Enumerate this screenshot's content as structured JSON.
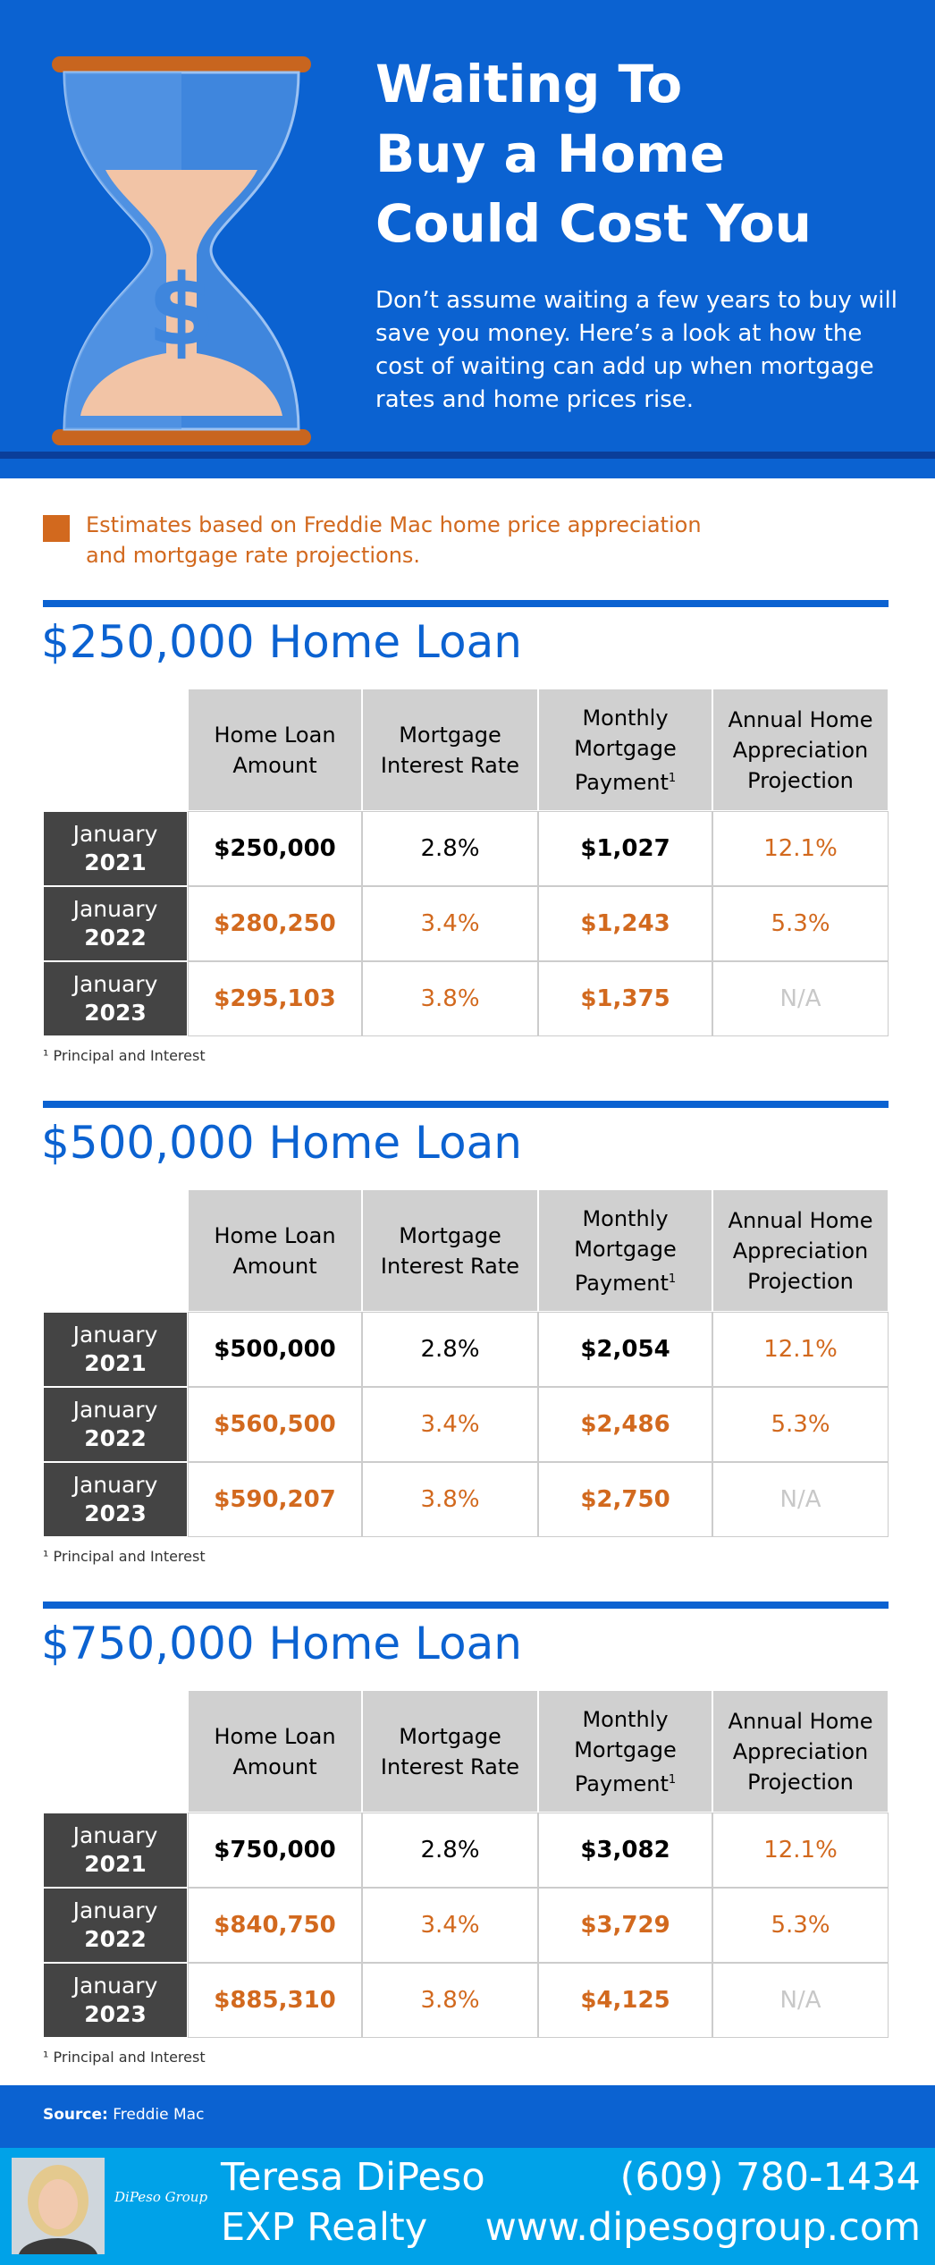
{
  "header": {
    "title": [
      "Waiting To",
      "Buy a Home",
      "Could Cost You"
    ],
    "description": "Don’t assume waiting a few years to buy will save you money. Here’s a look at how the cost of waiting can add up when mortgage rates and home prices rise."
  },
  "note": "Estimates based on Freddie Mac home price appreciation and mortgage rate projections.",
  "tables": [
    {
      "title": "$250,000 Home Loan",
      "columns": [
        "Home Loan Amount",
        "Mortgage Interest Rate",
        {
          "label": "Monthly Mortgage Payment",
          "sup": "1"
        },
        "Annual Home Appreciation Projection"
      ],
      "rows": [
        {
          "label": [
            "January",
            "2021"
          ],
          "cells": [
            "$250,000",
            "2.8%",
            "$1,027",
            "12.1%"
          ]
        },
        {
          "label": [
            "January",
            "2022"
          ],
          "cells": [
            "$280,250",
            "3.4%",
            "$1,243",
            "5.3%"
          ]
        },
        {
          "label": [
            "January",
            "2023"
          ],
          "cells": [
            "$295,103",
            "3.8%",
            "$1,375",
            "N/A"
          ]
        }
      ],
      "footnote": "¹ Principal and Interest"
    },
    {
      "title": "$500,000 Home Loan",
      "columns": [
        "Home Loan Amount",
        "Mortgage Interest Rate",
        {
          "label": "Monthly Mortgage Payment",
          "sup": "1"
        },
        "Annual Home Appreciation Projection"
      ],
      "rows": [
        {
          "label": [
            "January",
            "2021"
          ],
          "cells": [
            "$500,000",
            "2.8%",
            "$2,054",
            "12.1%"
          ]
        },
        {
          "label": [
            "January",
            "2022"
          ],
          "cells": [
            "$560,500",
            "3.4%",
            "$2,486",
            "5.3%"
          ]
        },
        {
          "label": [
            "January",
            "2023"
          ],
          "cells": [
            "$590,207",
            "3.8%",
            "$2,750",
            "N/A"
          ]
        }
      ],
      "footnote": "¹ Principal and Interest"
    },
    {
      "title": "$750,000 Home Loan",
      "columns": [
        "Home Loan Amount",
        "Mortgage Interest Rate",
        {
          "label": "Monthly Mortgage Payment",
          "sup": "1"
        },
        "Annual Home Appreciation Projection"
      ],
      "rows": [
        {
          "label": [
            "January",
            "2021"
          ],
          "cells": [
            "$750,000",
            "2.8%",
            "$3,082",
            "12.1%"
          ]
        },
        {
          "label": [
            "January",
            "2022"
          ],
          "cells": [
            "$840,750",
            "3.4%",
            "$3,729",
            "5.3%"
          ]
        },
        {
          "label": [
            "January",
            "2023"
          ],
          "cells": [
            "$885,310",
            "3.8%",
            "$4,125",
            "N/A"
          ]
        }
      ],
      "footnote": "¹ Principal and Interest"
    }
  ],
  "footer": {
    "source_label": "Source:",
    "source": "Freddie Mac",
    "logo": "DiPeso Group",
    "agent": "Teresa DiPeso",
    "company": "EXP Realty",
    "phone": "(609) 780-1434",
    "website": "www.dipesogroup.com"
  }
}
